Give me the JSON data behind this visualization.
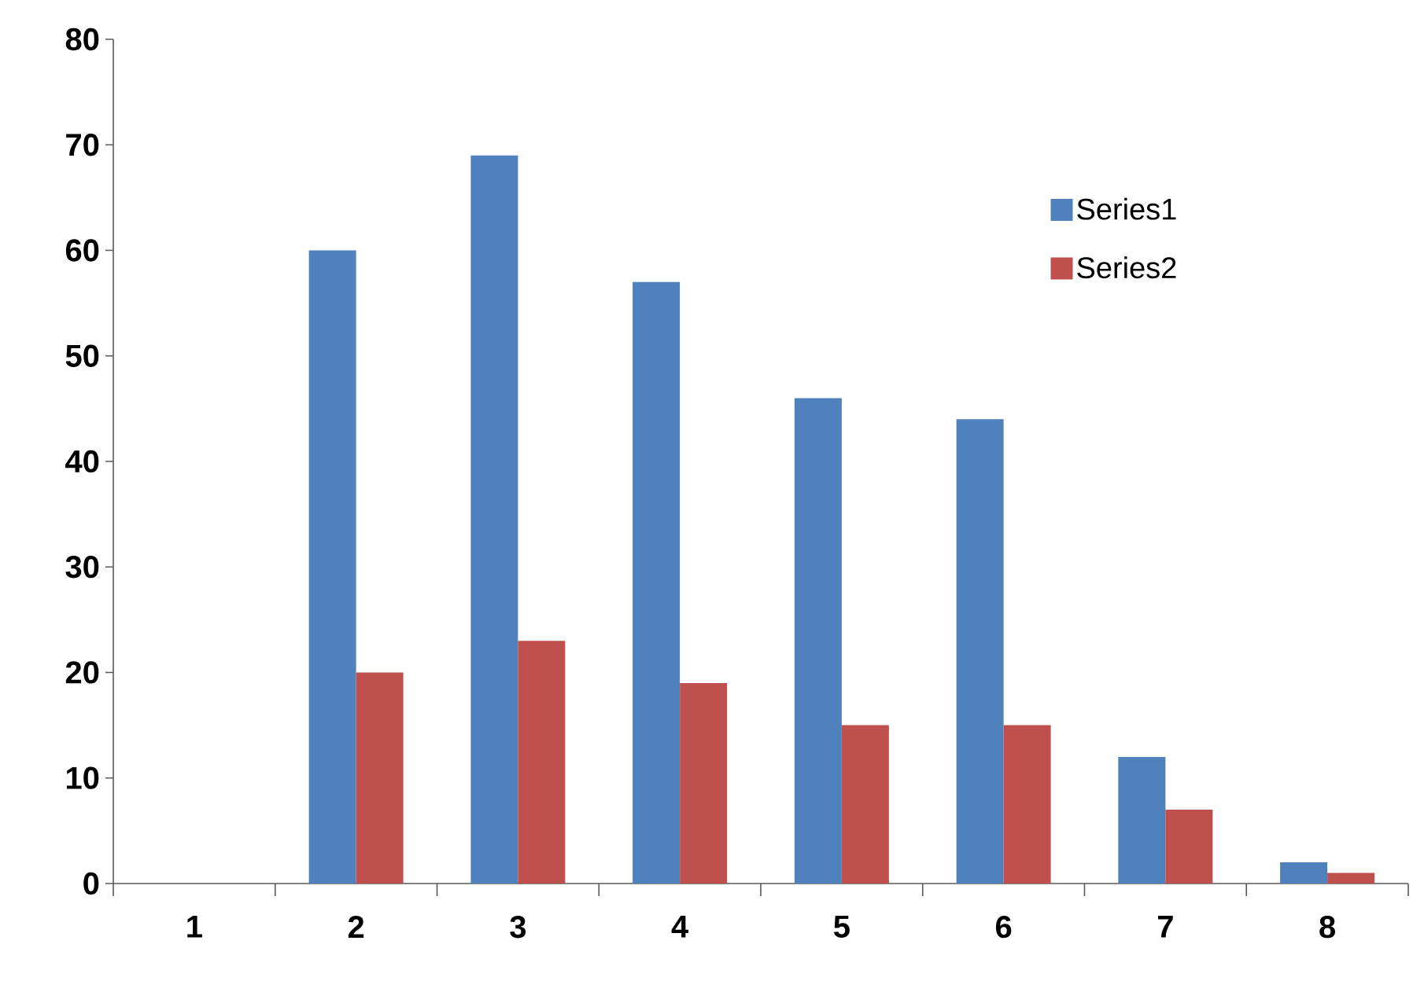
{
  "chart_data": {
    "type": "bar",
    "categories": [
      "1",
      "2",
      "3",
      "4",
      "5",
      "6",
      "7",
      "8"
    ],
    "series": [
      {
        "name": "Series1",
        "color": "#4f81bd",
        "values": [
          null,
          60,
          69,
          57,
          46,
          44,
          12,
          2
        ]
      },
      {
        "name": "Series2",
        "color": "#c0504d",
        "values": [
          null,
          20,
          23,
          19,
          15,
          15,
          7,
          1
        ]
      }
    ],
    "ylim": [
      0,
      80
    ],
    "yticks": [
      0,
      10,
      20,
      30,
      40,
      50,
      60,
      70,
      80
    ],
    "grid": false,
    "legend": "top right"
  }
}
